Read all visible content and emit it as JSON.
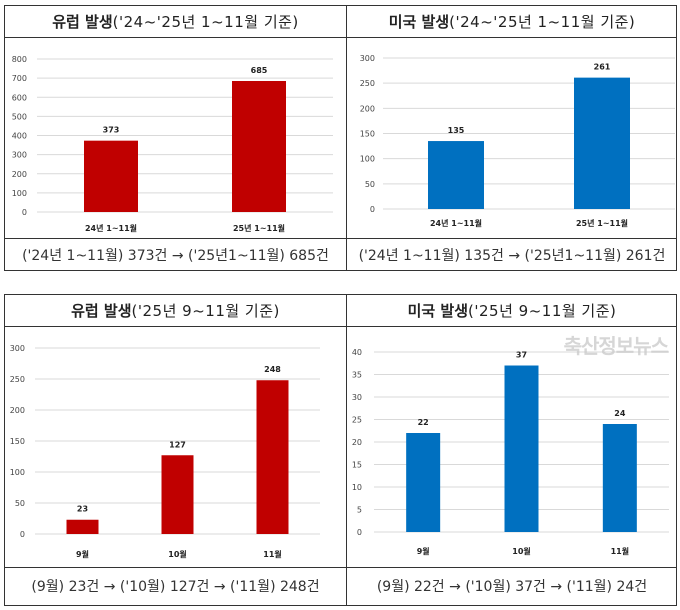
{
  "watermark": "축산정보뉴스",
  "chart_data": [
    {
      "type": "bar",
      "title_bold": "유럽 발생",
      "title_rest": "('24~'25년 1~11월 기준)",
      "categories": [
        "24년 1~11월",
        "25년 1~11월"
      ],
      "values": [
        373,
        685
      ],
      "ylim": [
        0,
        800
      ],
      "yticks": [
        0,
        100,
        200,
        300,
        400,
        500,
        600,
        700,
        800
      ],
      "color": "#c00000",
      "grid": true,
      "summary": "('24년 1~11월) 373건 → ('25년1~11월) 685건"
    },
    {
      "type": "bar",
      "title_bold": "미국 발생",
      "title_rest": "('24~'25년 1~11월 기준)",
      "categories": [
        "24년 1~11월",
        "25년 1~11월"
      ],
      "values": [
        135,
        261
      ],
      "ylim": [
        0,
        300
      ],
      "yticks": [
        0,
        50,
        100,
        150,
        200,
        250,
        300
      ],
      "color": "#0070c0",
      "grid": true,
      "summary": "('24년 1~11월) 135건 → ('25년1~11월) 261건"
    },
    {
      "type": "bar",
      "title_bold": "유럽 발생",
      "title_rest": "('25년 9~11월 기준)",
      "categories": [
        "9월",
        "10월",
        "11월"
      ],
      "values": [
        23,
        127,
        248
      ],
      "ylim": [
        0,
        300
      ],
      "yticks": [
        0,
        50,
        100,
        150,
        200,
        250,
        300
      ],
      "color": "#c00000",
      "grid": true,
      "summary": "(9월) 23건 → ('10월) 127건 → ('11월) 248건"
    },
    {
      "type": "bar",
      "title_bold": "미국 발생",
      "title_rest": "('25년 9~11월 기준)",
      "categories": [
        "9월",
        "10월",
        "11월"
      ],
      "values": [
        22,
        37,
        24
      ],
      "ylim": [
        0,
        40
      ],
      "yticks": [
        0,
        5,
        10,
        15,
        20,
        25,
        30,
        35,
        40
      ],
      "color": "#0070c0",
      "grid": true,
      "summary": "(9월) 22건 → ('10월) 37건 → ('11월) 24건"
    }
  ]
}
